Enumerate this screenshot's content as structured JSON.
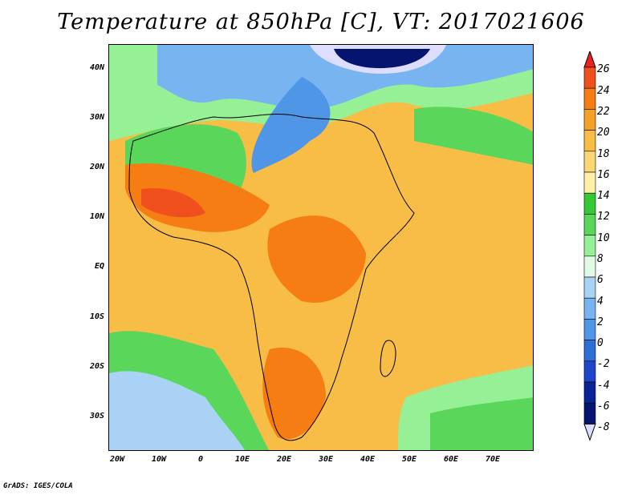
{
  "title": "Temperature at 850hPa [C], VT: 2017021606",
  "credit": "GrADS: IGES/COLA",
  "map": {
    "lat_labels": [
      "40N",
      "30N",
      "20N",
      "10N",
      "EQ",
      "10S",
      "20S",
      "30S"
    ],
    "lat_values": [
      40,
      30,
      20,
      10,
      0,
      -10,
      -20,
      -30
    ],
    "lon_labels": [
      "20W",
      "10W",
      "0",
      "10E",
      "20E",
      "30E",
      "40E",
      "50E",
      "60E",
      "70E"
    ],
    "lon_values": [
      -20,
      -10,
      0,
      10,
      20,
      30,
      40,
      50,
      60,
      70
    ],
    "lon_range": [
      -22,
      80
    ],
    "lat_range": [
      -37,
      45
    ]
  },
  "colorbar": {
    "labels": [
      "26",
      "24",
      "22",
      "20",
      "18",
      "16",
      "14",
      "12",
      "10",
      "8",
      "6",
      "4",
      "2",
      "0",
      "-2",
      "-4",
      "-6",
      "-8"
    ],
    "colors": [
      "#f01e1e",
      "#f0501e",
      "#f57d14",
      "#f5a028",
      "#f7bd46",
      "#fad775",
      "#fff0aa",
      "#37c837",
      "#5ad75a",
      "#96f096",
      "#e1fae6",
      "#aad2f5",
      "#78b4f0",
      "#5096e6",
      "#2d6ed7",
      "#1e46c8",
      "#0a2396",
      "#05146e",
      "#ddddff"
    ]
  }
}
